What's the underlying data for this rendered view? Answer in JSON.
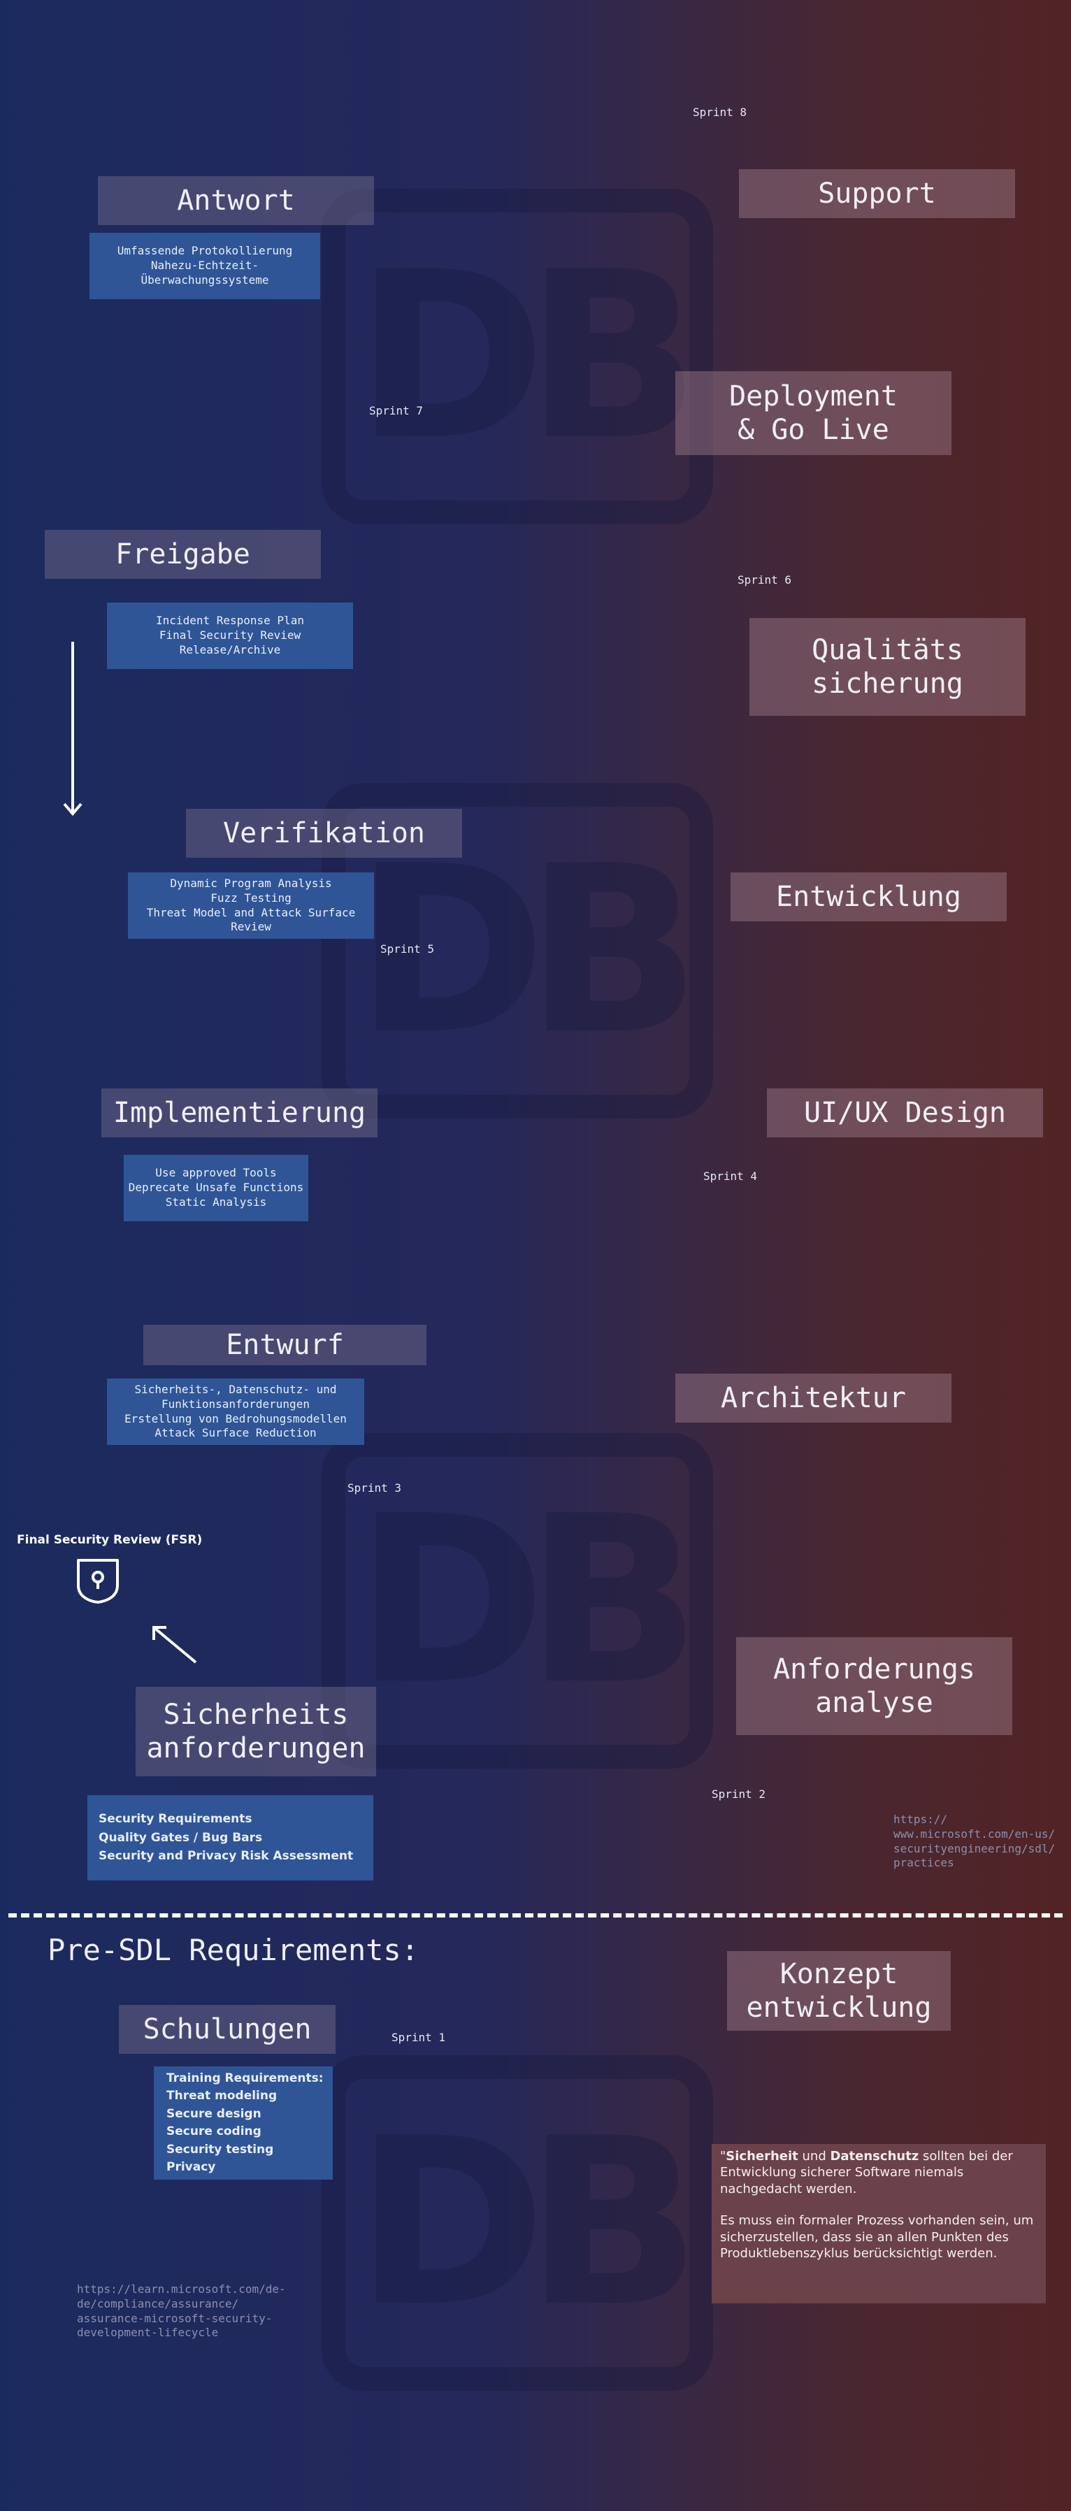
{
  "sdl_phases": {
    "antwort": "Antwort",
    "freigabe": "Freigabe",
    "verifikation": "Verifikation",
    "implementierung": "Implementierung",
    "entwurf": "Entwurf",
    "sicherheitsanforderungen": "Sicherheits\nanforderungen",
    "schulungen": "Schulungen"
  },
  "sdl_details": {
    "antwort": "Umfassende Protokollierung\nNahezu-Echtzeit-\nÜberwachungssysteme",
    "freigabe": "Incident Response Plan\nFinal Security Review\nRelease/Archive",
    "verifikation": "Dynamic Program Analysis\nFuzz Testing\nThreat Model and Attack Surface Review",
    "implementierung": "Use approved Tools\nDeprecate Unsafe Functions\nStatic Analysis",
    "entwurf": "Sicherheits-, Datenschutz- und\nFunktionsanforderungen\nErstellung von Bedrohungsmodellen\nAttack Surface Reduction",
    "sicherheitsanforderungen": "Security Requirements\nQuality Gates / Bug Bars\nSecurity and Privacy Risk Assessment",
    "schulungen": "Training Requirements:\nThreat modeling\nSecure design\nSecure coding\nSecurity testing\nPrivacy"
  },
  "dev_phases": {
    "support": "Support",
    "deployment": "Deployment\n& Go Live",
    "qualitaet": "Qualitäts\nsicherung",
    "entwicklung": "Entwicklung",
    "uiux": "UI/UX Design",
    "architektur": "Architektur",
    "anforderungsanalyse": "Anforderungs\nanalyse",
    "konzept": "Konzept\nentwicklung"
  },
  "sprints": {
    "s1": "Sprint 1",
    "s2": "Sprint 2",
    "s3": "Sprint 3",
    "s4": "Sprint 4",
    "s5": "Sprint 5",
    "s6": "Sprint 6",
    "s7": "Sprint 7",
    "s8": "Sprint 8"
  },
  "fsr_label": "Final Security Review (FSR)",
  "pre_sdl_title": "Pre-SDL Requirements:",
  "quote": {
    "open": "\"",
    "bold1": "Sicherheit",
    "und": " und ",
    "bold2": "Datenschutz",
    "rest": " sollten bei der Entwicklung sicherer Software niemals nachgedacht werden.",
    "para2": "Es muss ein formaler Prozess vorhanden sein, um sicherzustellen, dass sie an allen Punkten des Produktlebenszyklus berücksichtigt werden."
  },
  "urls": {
    "sdl_practices": "https://\nwww.microsoft.com/en-us/\nsecurityengineering/sdl/\npractices",
    "learn": "https://learn.microsoft.com/de-\nde/compliance/assurance/\nassurance-microsoft-security-\ndevelopment-lifecycle"
  },
  "colors": {
    "info_box": "#2f5597",
    "quote_box": "#6b4249",
    "bg_left": "#1b2a5e",
    "bg_right": "#522325"
  },
  "icons": [
    "shield-lock-icon",
    "arrow-down-icon",
    "arrow-up-left-icon"
  ]
}
